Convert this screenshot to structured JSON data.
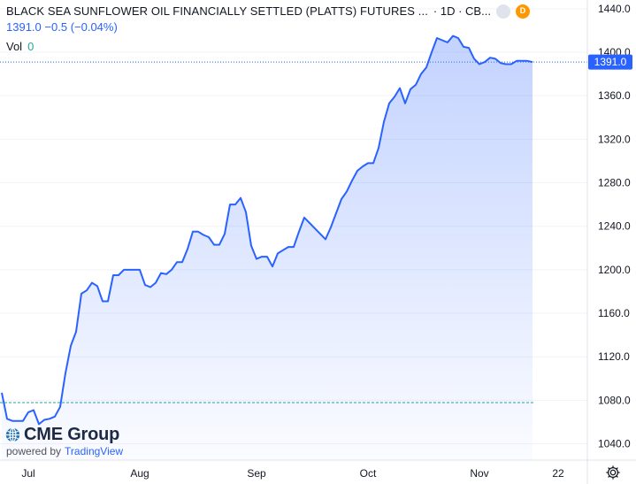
{
  "header": {
    "title": "BLACK SEA SUNFLOWER OIL FINANCIALLY SETTLED (PLATTS) FUTURES ...",
    "interval": "· 1D · CB...",
    "badge_grey": "",
    "badge_d": "D",
    "last": "1391.0",
    "change": "−0.5",
    "change_pct": "(−0.04%)",
    "vol_label": "Vol",
    "vol_value": "0"
  },
  "logo": {
    "brand": "CME Group",
    "powered": "powered by",
    "tv": "TradingView"
  },
  "colors": {
    "line": "#2962ff",
    "fill": "#2962ff",
    "price_label": "#2962ff",
    "vol_line": "#26a69a"
  },
  "chart_data": {
    "type": "area",
    "x_tick_labels": [
      "Jul",
      "Aug",
      "Sep",
      "Oct",
      "Nov",
      "22"
    ],
    "y_ticks": [
      1040.0,
      1080.0,
      1120.0,
      1160.0,
      1200.0,
      1240.0,
      1280.0,
      1320.0,
      1360.0,
      1400.0,
      1440.0
    ],
    "ylim": [
      1025,
      1448
    ],
    "last_price": 1391.0,
    "last_price_label": "1391.0",
    "values": [
      1087,
      1063,
      1061,
      1061,
      1061,
      1069,
      1071,
      1058,
      1062,
      1063,
      1065,
      1074,
      1105,
      1130,
      1143,
      1178,
      1181,
      1188,
      1185,
      1171,
      1171,
      1195,
      1195,
      1200,
      1200,
      1200,
      1200,
      1186,
      1184,
      1188,
      1197,
      1196,
      1200,
      1207,
      1207,
      1219,
      1235,
      1235,
      1232,
      1230,
      1223,
      1223,
      1233,
      1260,
      1260,
      1266,
      1253,
      1222,
      1210,
      1212,
      1212,
      1203,
      1215,
      1218,
      1221,
      1221,
      1235,
      1248,
      1243,
      1238,
      1233,
      1228,
      1239,
      1252,
      1265,
      1272,
      1282,
      1291,
      1295,
      1298,
      1298,
      1312,
      1336,
      1353,
      1359,
      1367,
      1353,
      1366,
      1370,
      1380,
      1386,
      1400,
      1413,
      1411,
      1409,
      1415,
      1413,
      1405,
      1404,
      1394,
      1389,
      1391,
      1395,
      1394,
      1390,
      1389,
      1389,
      1392,
      1392,
      1392,
      1391
    ]
  }
}
